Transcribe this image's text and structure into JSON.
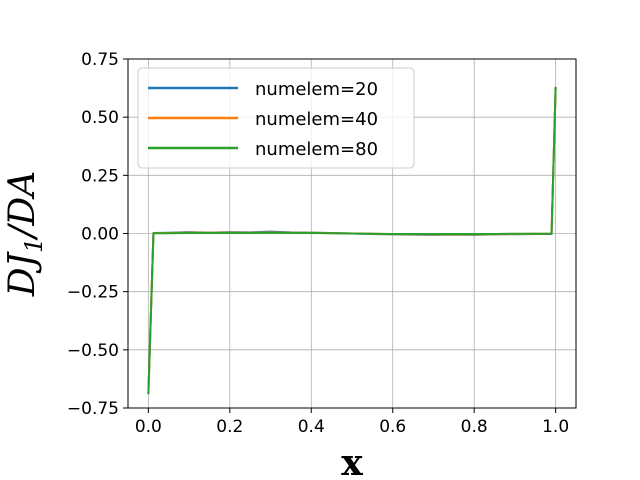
{
  "chart_data": {
    "type": "line",
    "xlabel": "x",
    "ylabel": "DJ1/DA",
    "ylabel_parts": {
      "pre": "DJ",
      "sub": "1",
      "post": "/DA"
    },
    "xlim": [
      -0.05,
      1.05
    ],
    "ylim": [
      -0.75,
      0.75
    ],
    "x_ticks": [
      0.0,
      0.2,
      0.4,
      0.6,
      0.8,
      1.0
    ],
    "x_tick_labels": [
      "0.0",
      "0.2",
      "0.4",
      "0.6",
      "0.8",
      "1.0"
    ],
    "y_ticks": [
      0.75,
      0.5,
      0.25,
      0.0,
      -0.25,
      -0.5,
      -0.75
    ],
    "y_tick_labels": [
      "0.75",
      "0.50",
      "0.25",
      "0.00",
      "−0.25",
      "−0.50",
      "−0.75"
    ],
    "grid": true,
    "legend_position": "upper-left",
    "series": [
      {
        "name": "numelem=20",
        "color": "#1f77b4",
        "x": [
          0.0,
          0.0125,
          0.05,
          0.1,
          0.15,
          0.2,
          0.25,
          0.3,
          0.35,
          0.4,
          0.45,
          0.5,
          0.55,
          0.6,
          0.65,
          0.7,
          0.75,
          0.8,
          0.85,
          0.9,
          0.95,
          0.99,
          1.0
        ],
        "y": [
          -0.69,
          0.002,
          0.003,
          0.006,
          0.004,
          0.006,
          0.005,
          0.008,
          0.005,
          0.004,
          0.002,
          0.0,
          -0.002,
          -0.004,
          -0.005,
          -0.006,
          -0.005,
          -0.006,
          -0.004,
          -0.003,
          -0.002,
          -0.002,
          0.63
        ]
      },
      {
        "name": "numelem=40",
        "color": "#ff7f0e",
        "x": [
          0.0,
          0.0125,
          0.05,
          0.1,
          0.15,
          0.2,
          0.25,
          0.3,
          0.35,
          0.4,
          0.45,
          0.5,
          0.55,
          0.6,
          0.65,
          0.7,
          0.75,
          0.8,
          0.85,
          0.9,
          0.95,
          0.99,
          1.0
        ],
        "y": [
          -0.69,
          0.002,
          0.002,
          0.004,
          0.003,
          0.004,
          0.003,
          0.005,
          0.003,
          0.003,
          0.001,
          0.0,
          -0.001,
          -0.003,
          -0.003,
          -0.004,
          -0.003,
          -0.004,
          -0.003,
          -0.002,
          -0.001,
          -0.001,
          0.63
        ]
      },
      {
        "name": "numelem=80",
        "color": "#2ca02c",
        "x": [
          0.0,
          0.0125,
          0.05,
          0.1,
          0.15,
          0.2,
          0.25,
          0.3,
          0.35,
          0.4,
          0.45,
          0.5,
          0.55,
          0.6,
          0.65,
          0.7,
          0.75,
          0.8,
          0.85,
          0.9,
          0.95,
          0.99,
          1.0
        ],
        "y": [
          -0.69,
          0.001,
          0.001,
          0.002,
          0.002,
          0.002,
          0.002,
          0.003,
          0.002,
          0.002,
          0.001,
          0.0,
          -0.001,
          -0.002,
          -0.002,
          -0.002,
          -0.002,
          -0.002,
          -0.002,
          -0.001,
          -0.001,
          -0.001,
          0.63
        ]
      }
    ]
  }
}
